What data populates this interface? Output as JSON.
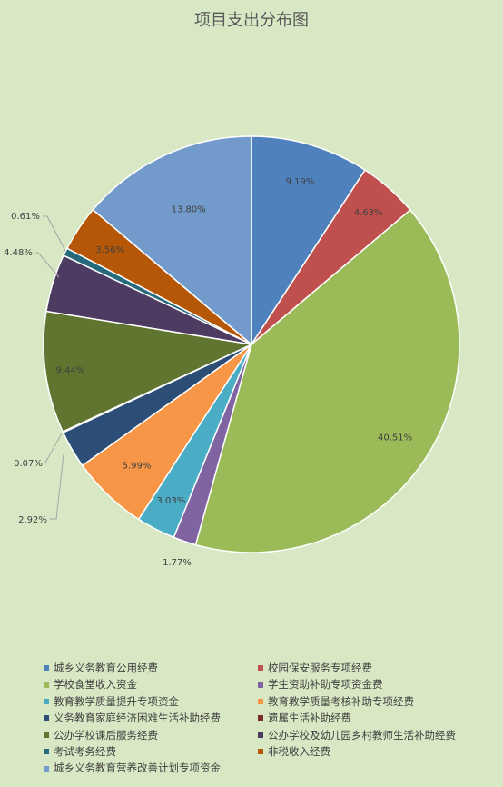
{
  "chart_data": {
    "type": "pie",
    "title": "项目支出分布图",
    "slices": [
      {
        "name": "城乡义务教育公用经费",
        "value": 9.19,
        "label": "9.19%",
        "color": "#4f81bd"
      },
      {
        "name": "校园保安服务专项经费",
        "value": 4.63,
        "label": "4.63%",
        "color": "#c0504d"
      },
      {
        "name": "学校食堂收入资金",
        "value": 40.51,
        "label": "40.51%",
        "color": "#9bbb59"
      },
      {
        "name": "学生资助补助专项资金费",
        "value": 1.77,
        "label": "1.77%",
        "color": "#8064a2"
      },
      {
        "name": "教育教学质量提升专项资金",
        "value": 3.03,
        "label": "3.03%",
        "color": "#4bacc6"
      },
      {
        "name": "教育教学质量考核补助专项经费",
        "value": 5.99,
        "label": "5.99%",
        "color": "#f79646"
      },
      {
        "name": "义务教育家庭经济困难生活补助经费",
        "value": 2.92,
        "label": "2.92%",
        "color": "#2c4d75"
      },
      {
        "name": "遗属生活补助经费",
        "value": 0.07,
        "label": "0.07%",
        "color": "#772c2a"
      },
      {
        "name": "公办学校课后服务经费",
        "value": 9.44,
        "label": "9.44%",
        "color": "#5f7530"
      },
      {
        "name": "公办学校及幼儿园乡村教师生活补助经费",
        "value": 4.48,
        "label": "4.48%",
        "color": "#4d3b62"
      },
      {
        "name": "考试考务经费",
        "value": 0.61,
        "label": "0.61%",
        "color": "#276a7c"
      },
      {
        "name": "非税收入经费",
        "value": 3.56,
        "label": "3.56%",
        "color": "#b65708"
      },
      {
        "name": "城乡义务教育营养改善计划专项资金",
        "value": 13.8,
        "label": "13.80%",
        "color": "#729aca"
      }
    ],
    "legend_position": "bottom"
  }
}
